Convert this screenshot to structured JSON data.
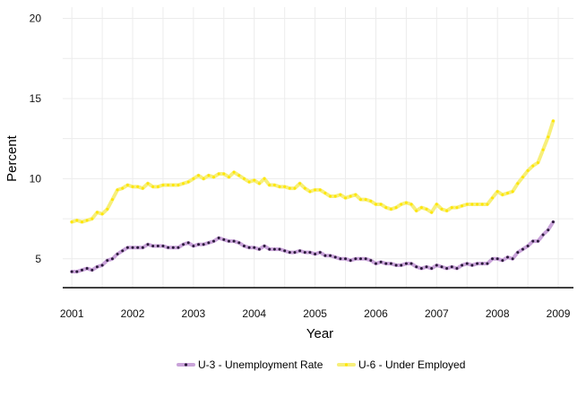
{
  "chart_data": {
    "type": "line",
    "xlabel": "Year",
    "ylabel": "Percent",
    "xlim": [
      2000.85,
      2009.25
    ],
    "ylim": [
      3.2,
      20.7
    ],
    "xticks": [
      2001,
      2002,
      2003,
      2004,
      2005,
      2006,
      2007,
      2008,
      2009
    ],
    "yticks": [
      5,
      10,
      15,
      20
    ],
    "grid": true,
    "legend_position": "bottom",
    "series": [
      {
        "name": "U-3 - Unemployment Rate",
        "line_color": "#c9a3d9",
        "point_color": "#2a1a3a",
        "start": [
          2001,
          1
        ],
        "values": [
          4.2,
          4.2,
          4.3,
          4.4,
          4.3,
          4.5,
          4.6,
          4.9,
          5.0,
          5.3,
          5.5,
          5.7,
          5.7,
          5.7,
          5.7,
          5.9,
          5.8,
          5.8,
          5.8,
          5.7,
          5.7,
          5.7,
          5.9,
          6.0,
          5.8,
          5.9,
          5.9,
          6.0,
          6.1,
          6.3,
          6.2,
          6.1,
          6.1,
          6.0,
          5.8,
          5.7,
          5.7,
          5.6,
          5.8,
          5.6,
          5.6,
          5.6,
          5.5,
          5.4,
          5.4,
          5.5,
          5.4,
          5.4,
          5.3,
          5.4,
          5.2,
          5.2,
          5.1,
          5.0,
          5.0,
          4.9,
          5.0,
          5.0,
          5.0,
          4.9,
          4.7,
          4.8,
          4.7,
          4.7,
          4.6,
          4.6,
          4.7,
          4.7,
          4.5,
          4.4,
          4.5,
          4.4,
          4.6,
          4.5,
          4.4,
          4.5,
          4.4,
          4.6,
          4.7,
          4.6,
          4.7,
          4.7,
          4.7,
          5.0,
          5.0,
          4.9,
          5.1,
          5.0,
          5.4,
          5.6,
          5.8,
          6.1,
          6.1,
          6.5,
          6.8,
          7.3
        ]
      },
      {
        "name": "U-6 - Under Employed",
        "line_color": "#f7ef7a",
        "point_color": "#ffe600",
        "start": [
          2001,
          1
        ],
        "values": [
          7.3,
          7.4,
          7.3,
          7.4,
          7.5,
          7.9,
          7.8,
          8.1,
          8.7,
          9.3,
          9.4,
          9.6,
          9.5,
          9.5,
          9.4,
          9.7,
          9.5,
          9.5,
          9.6,
          9.6,
          9.6,
          9.6,
          9.7,
          9.8,
          10.0,
          10.2,
          10.0,
          10.2,
          10.1,
          10.3,
          10.3,
          10.1,
          10.4,
          10.2,
          10.0,
          9.8,
          9.9,
          9.7,
          10.0,
          9.6,
          9.6,
          9.5,
          9.5,
          9.4,
          9.4,
          9.7,
          9.4,
          9.2,
          9.3,
          9.3,
          9.1,
          8.9,
          8.9,
          9.0,
          8.8,
          8.9,
          9.0,
          8.7,
          8.7,
          8.6,
          8.4,
          8.4,
          8.2,
          8.1,
          8.2,
          8.4,
          8.5,
          8.4,
          8.0,
          8.2,
          8.1,
          7.9,
          8.4,
          8.1,
          8.0,
          8.2,
          8.2,
          8.3,
          8.4,
          8.4,
          8.4,
          8.4,
          8.4,
          8.8,
          9.2,
          9.0,
          9.1,
          9.2,
          9.7,
          10.1,
          10.5,
          10.8,
          11.0,
          11.8,
          12.6,
          13.6
        ]
      }
    ]
  }
}
